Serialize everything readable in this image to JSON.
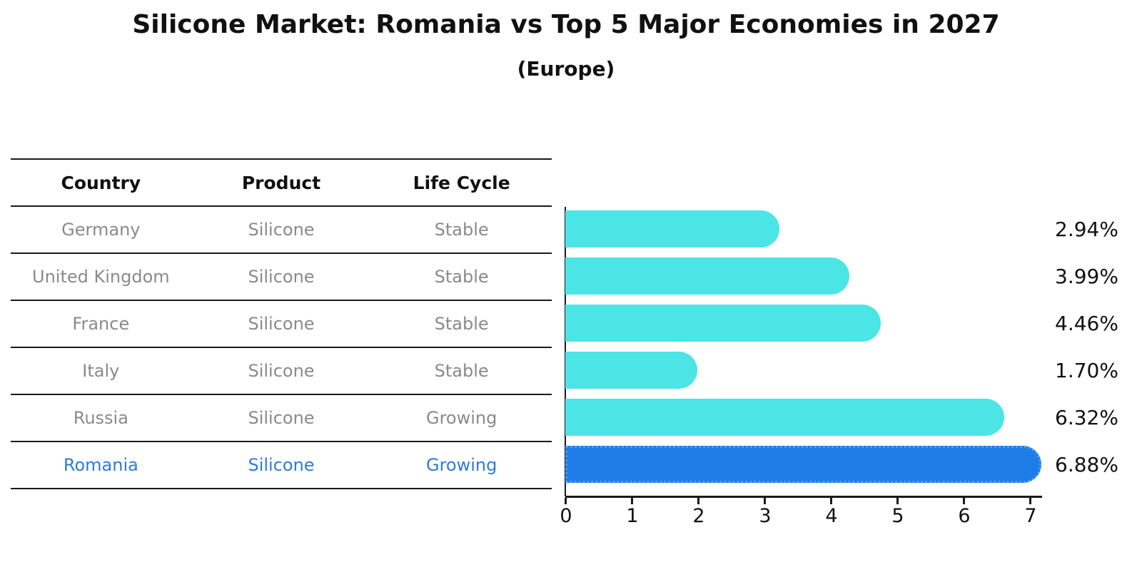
{
  "title": "Silicone Market: Romania vs Top 5 Major Economies in 2027",
  "subtitle": "(Europe)",
  "table": {
    "headers": [
      "Country",
      "Product",
      "Life Cycle"
    ],
    "rows": [
      {
        "country": "Germany",
        "product": "Silicone",
        "life_cycle": "Stable"
      },
      {
        "country": "United Kingdom",
        "product": "Silicone",
        "life_cycle": "Stable"
      },
      {
        "country": "France",
        "product": "Silicone",
        "life_cycle": "Stable"
      },
      {
        "country": "Italy",
        "product": "Silicone",
        "life_cycle": "Stable"
      },
      {
        "country": "Russia",
        "product": "Silicone",
        "life_cycle": "Growing"
      },
      {
        "country": "Romania",
        "product": "Silicone",
        "life_cycle": "Growing"
      }
    ]
  },
  "chart_data": {
    "type": "bar",
    "orientation": "horizontal",
    "title": "Silicone Market: Romania vs Top 5 Major Economies in 2027",
    "subtitle": "(Europe)",
    "categories": [
      "Germany",
      "United Kingdom",
      "France",
      "Italy",
      "Russia",
      "Romania"
    ],
    "values": [
      2.94,
      3.99,
      4.46,
      1.7,
      6.32,
      6.88
    ],
    "value_labels": [
      "2.94%",
      "3.99%",
      "4.46%",
      "1.70%",
      "6.32%",
      "6.88%"
    ],
    "x_ticks": [
      "0",
      "1",
      "2",
      "3",
      "4",
      "5",
      "6",
      "7"
    ],
    "xlim": [
      0,
      7.25
    ],
    "xlabel": "",
    "ylabel": "",
    "grid": false,
    "legend": "none",
    "highlight_index": 5,
    "colors": {
      "bar": "#4AE5E4",
      "highlight_bar": "#1E7CE6",
      "highlight_bar_border": "#4D9BEF",
      "row_text": "#8A8A8A",
      "highlight_row_text": "#2E7CD6",
      "label_text": "#111111",
      "line": "#1A1A1A"
    }
  }
}
